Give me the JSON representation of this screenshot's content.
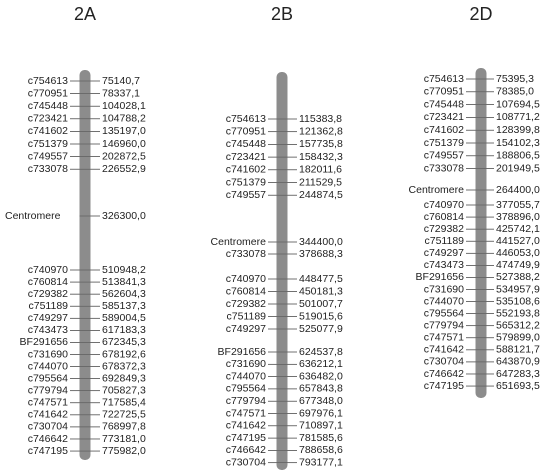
{
  "chromosomes": [
    {
      "name": "2A",
      "markers": [
        {
          "name": "c754613",
          "position": "75140,7"
        },
        {
          "name": "c770951",
          "position": "78337,1"
        },
        {
          "name": "c745448",
          "position": "104028,1"
        },
        {
          "name": "c723421",
          "position": "104788,2"
        },
        {
          "name": "c741602",
          "position": "135197,0"
        },
        {
          "name": "c751379",
          "position": "146960,0"
        },
        {
          "name": "c749557",
          "position": "202872,5"
        },
        {
          "name": "c733078",
          "position": "226552,9"
        },
        {
          "name": "Centromere",
          "position": "326300,0"
        },
        {
          "name": "c740970",
          "position": "510948,2"
        },
        {
          "name": "c760814",
          "position": "513841,3"
        },
        {
          "name": "c729382",
          "position": "562604,3"
        },
        {
          "name": "c751189",
          "position": "585137,3"
        },
        {
          "name": "c749297",
          "position": "589004,5"
        },
        {
          "name": "c743473",
          "position": "617183,3"
        },
        {
          "name": "BF291656",
          "position": "672345,3"
        },
        {
          "name": "c731690",
          "position": "678192,6"
        },
        {
          "name": "c744070",
          "position": "678372,3"
        },
        {
          "name": "c795564",
          "position": "692849,3"
        },
        {
          "name": "c779794",
          "position": "705827,3"
        },
        {
          "name": "c747571",
          "position": "717585,4"
        },
        {
          "name": "c741642",
          "position": "722725,5"
        },
        {
          "name": "c730704",
          "position": "768997,8"
        },
        {
          "name": "c746642",
          "position": "773181,0"
        },
        {
          "name": "c747195",
          "position": "775982,0"
        }
      ]
    },
    {
      "name": "2B",
      "markers": [
        {
          "name": "c754613",
          "position": "115383,8"
        },
        {
          "name": "c770951",
          "position": "121362,8"
        },
        {
          "name": "c745448",
          "position": "157735,8"
        },
        {
          "name": "c723421",
          "position": "158432,3"
        },
        {
          "name": "c741602",
          "position": "182011,6"
        },
        {
          "name": "c751379",
          "position": "211529,5"
        },
        {
          "name": "c749557",
          "position": "244874,5"
        },
        {
          "name": "Centromere",
          "position": "344400,0"
        },
        {
          "name": "c733078",
          "position": "378688,3"
        },
        {
          "name": "c740970",
          "position": "448477,5"
        },
        {
          "name": "c760814",
          "position": "450181,3"
        },
        {
          "name": "c729382",
          "position": "501007,7"
        },
        {
          "name": "c751189",
          "position": "519015,6"
        },
        {
          "name": "c749297",
          "position": "525077,9"
        },
        {
          "name": "BF291656",
          "position": "624537,8"
        },
        {
          "name": "c731690",
          "position": "636212,1"
        },
        {
          "name": "c744070",
          "position": "636482,0"
        },
        {
          "name": "c795564",
          "position": "657843,8"
        },
        {
          "name": "c779794",
          "position": "677348,0"
        },
        {
          "name": "c747571",
          "position": "697976,1"
        },
        {
          "name": "c741642",
          "position": "710897,1"
        },
        {
          "name": "c747195",
          "position": "781585,6"
        },
        {
          "name": "c746642",
          "position": "788658,6"
        },
        {
          "name": "c730704",
          "position": "793177,1"
        }
      ]
    },
    {
      "name": "2D",
      "markers": [
        {
          "name": "c754613",
          "position": "75395,3"
        },
        {
          "name": "c770951",
          "position": "78385,0"
        },
        {
          "name": "c745448",
          "position": "107694,5"
        },
        {
          "name": "c723421",
          "position": "108771,2"
        },
        {
          "name": "c741602",
          "position": "128399,8"
        },
        {
          "name": "c751379",
          "position": "154102,3"
        },
        {
          "name": "c749557",
          "position": "188806,5"
        },
        {
          "name": "c733078",
          "position": "201949,5"
        },
        {
          "name": "Centromere",
          "position": "264400,0"
        },
        {
          "name": "c740970",
          "position": "377055,7"
        },
        {
          "name": "c760814",
          "position": "378896,0"
        },
        {
          "name": "c729382",
          "position": "425742,1"
        },
        {
          "name": "c751189",
          "position": "441527,0"
        },
        {
          "name": "c749297",
          "position": "446053,0"
        },
        {
          "name": "c743473",
          "position": "474749,9"
        },
        {
          "name": "BF291656",
          "position": "527388,2"
        },
        {
          "name": "c731690",
          "position": "534957,9"
        },
        {
          "name": "c744070",
          "position": "535108,6"
        },
        {
          "name": "c795564",
          "position": "552193,8"
        },
        {
          "name": "c779794",
          "position": "565312,2"
        },
        {
          "name": "c747571",
          "position": "579899,0"
        },
        {
          "name": "c741642",
          "position": "588121,7"
        },
        {
          "name": "c730704",
          "position": "643870,9"
        },
        {
          "name": "c746642",
          "position": "647283,3"
        },
        {
          "name": "c747195",
          "position": "651693,5"
        }
      ]
    }
  ]
}
